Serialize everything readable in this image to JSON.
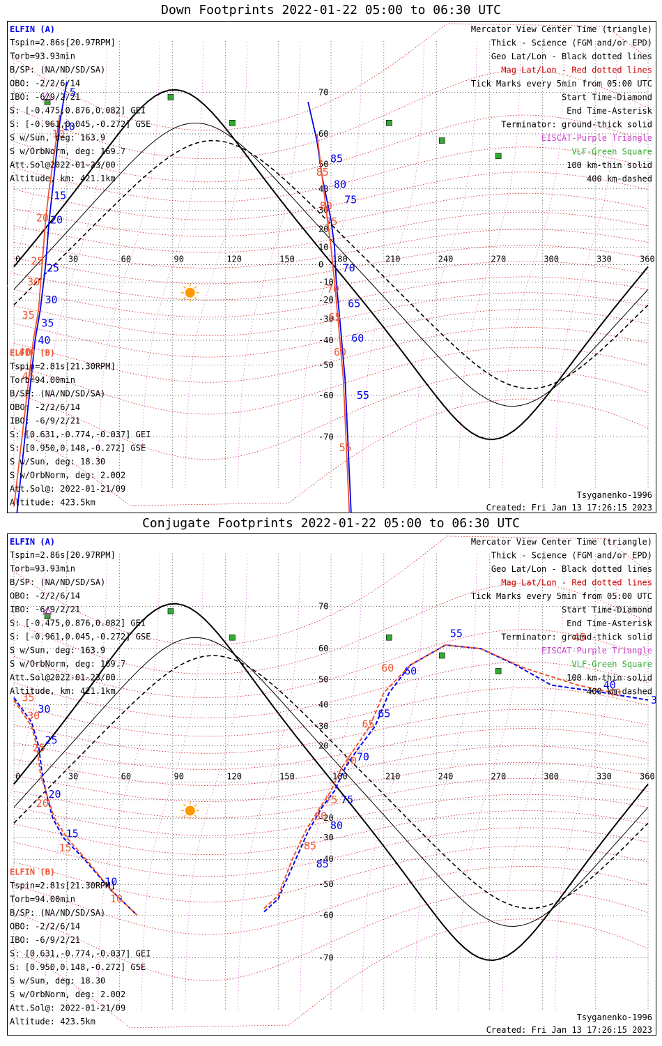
{
  "panels": [
    {
      "title": "Down Footprints 2022-01-22 05:00 to 06:30 UTC",
      "left_info": {
        "craft_a_label": "ELFIN (A)",
        "lines_a": [
          "Tspin=2.86s[20.97RPM]",
          "Torb=93.93min",
          "B/SP: (NA/ND/SD/SA)",
          "OBO: -2/2/6/14",
          "IBO: -6/9/2/21",
          "S: [-0.475,0.876,0.082] GEI",
          "S: [-0.961,0.045,-0.272] GSE",
          "S w/Sun, deg: 163.9",
          "S w/OrbNorm, deg: 169.7",
          "Att.Sol@2022-01-23/00",
          "Altitude, km: 421.1km"
        ],
        "craft_b_label": "ELFIN (B)",
        "lines_b": [
          "Tspin=2.81s[21.30RPM]",
          "Torb=94.00min",
          "B/SP: (NA/ND/SD/SA)",
          "OBO: -2/2/6/14",
          "IBO: -6/9/2/21",
          "S: [0.631,-0.774,-0.037] GEI",
          "S: [0.950,0.148,-0.272] GSE",
          "S w/Sun, deg: 18.30",
          "S w/OrbNorm, deg: 2.002",
          "Att.Sol@: 2022-01-21/09",
          "Altitude: 423.5km"
        ]
      },
      "right_info": {
        "lines": [
          "Mercator View Center Time (triangle)",
          "Thick - Science (FGM and/or EPD)",
          "Geo Lat/Lon - Black dotted lines",
          "Mag Lat/Lon - Red dotted lines",
          "Tick Marks every 5min from 05:00 UTC",
          "Start Time-Diamond",
          "End Time-Asterisk",
          "Terminator: ground-thick solid",
          "EISCAT-Purple Triangle",
          "VLF-Green Square",
          "100 km-thin solid",
          "400 km-dashed"
        ],
        "model": "Tsyganenko-1996",
        "created": "Created: Fri Jan 13 17:26:15 2023"
      },
      "chart_data": {
        "type": "map",
        "projection": "Mercator",
        "x_ticks": [
          0,
          30,
          60,
          90,
          120,
          150,
          180,
          210,
          240,
          270,
          300,
          330,
          360
        ],
        "y_ticks": [
          70,
          60,
          50,
          40,
          30,
          20,
          10,
          0,
          -10,
          -20,
          -30,
          -40,
          -50,
          -60,
          -70
        ],
        "y_tick_labels": [
          "70",
          "60",
          "50",
          "40",
          "30",
          "20",
          "10",
          "0",
          "-10",
          "-20",
          "-30",
          "-40",
          "-50",
          "-60",
          "-70"
        ],
        "colors": {
          "elfin_a": "#0000ee",
          "elfin_b": "#ee5533",
          "geo_grid": "#000000",
          "mag_grid": "#cc0000",
          "eiscat": "#cc44cc",
          "vlf": "#33aa33",
          "sun": "#ff9900"
        },
        "series": [
          {
            "name": "ELFIN (A)",
            "points": [
              [
                0,
                -83
              ],
              [
                12,
                -40
              ],
              [
                15,
                -25
              ],
              [
                18,
                0
              ],
              [
                20,
                25
              ],
              [
                22,
                40
              ],
              [
                26,
                63
              ],
              [
                30,
                72
              ]
            ],
            "ticks": [
              [
                12,
                -40,
                "40"
              ],
              [
                14,
                -32,
                "35"
              ],
              [
                16,
                -20,
                "30"
              ],
              [
                17,
                -2,
                "25"
              ],
              [
                19,
                25,
                "20"
              ],
              [
                21,
                37,
                "15"
              ],
              [
                26,
                62,
                "10"
              ],
              [
                30,
                70,
                "5"
              ]
            ]
          },
          {
            "name": "ELFIN (B)",
            "points": [
              [
                0,
                -80
              ],
              [
                11,
                -40
              ],
              [
                14,
                -25
              ],
              [
                16,
                0
              ],
              [
                18,
                25
              ],
              [
                20,
                40
              ],
              [
                26,
                65
              ]
            ],
            "ticks": [
              [
                3,
                -54,
                "45"
              ],
              [
                1,
                -45,
                "40"
              ],
              [
                3,
                -28,
                "35"
              ],
              [
                6,
                -10,
                "30"
              ],
              [
                8,
                2,
                "25"
              ],
              [
                11,
                26,
                "20"
              ],
              [
                20,
                60,
                "10"
              ]
            ]
          },
          {
            "name": "ELFIN (A) north",
            "points": [
              [
                167,
                68
              ],
              [
                172,
                58
              ],
              [
                175,
                45
              ],
              [
                180,
                25
              ],
              [
                182,
                10
              ],
              [
                183,
                -10
              ],
              [
                185,
                -30
              ],
              [
                188,
                -55
              ],
              [
                193,
                -85
              ]
            ],
            "ticks": [
              [
                178,
                52,
                "85"
              ],
              [
                180,
                42,
                "80"
              ],
              [
                186,
                35,
                "75"
              ],
              [
                185,
                -2,
                "70"
              ],
              [
                188,
                -22,
                "65"
              ],
              [
                190,
                -39,
                "60"
              ],
              [
                193,
                -60,
                "55"
              ]
            ]
          },
          {
            "name": "ELFIN (B) north",
            "points": [
              [
                172,
                60
              ],
              [
                175,
                45
              ],
              [
                178,
                25
              ],
              [
                180,
                10
              ],
              [
                182,
                -10
              ],
              [
                184,
                -30
              ],
              [
                187,
                -55
              ],
              [
                192,
                -85
              ]
            ],
            "ticks": [
              [
                170,
                47,
                "85"
              ],
              [
                172,
                32,
                "80"
              ],
              [
                175,
                24,
                "75"
              ],
              [
                176,
                -14,
                "70"
              ],
              [
                177,
                -29,
                "65"
              ],
              [
                180,
                -45,
                "60"
              ],
              [
                183,
                -72,
                "55"
              ]
            ]
          }
        ],
        "eiscat_site": {
          "lon": 19,
          "lat": 69
        },
        "vlf_sites": [
          [
            19,
            68
          ],
          [
            89,
            69
          ],
          [
            124,
            63
          ],
          [
            213,
            63
          ],
          [
            243,
            58
          ],
          [
            275,
            53
          ]
        ],
        "sun": {
          "lon": 100,
          "lat": -16
        }
      }
    },
    {
      "title": "Conjugate Footprints 2022-01-22 05:00 to 06:30 UTC",
      "left_info": {
        "craft_a_label": "ELFIN (A)",
        "lines_a": [
          "Tspin=2.86s[20.97RPM]",
          "Torb=93.93min",
          "B/SP: (NA/ND/SD/SA)",
          "OBO: -2/2/6/14",
          "IBO: -6/9/2/21",
          "S: [-0.475,0.876,0.082] GEI",
          "S: [-0.961,0.045,-0.272] GSE",
          "S w/Sun, deg: 163.9",
          "S w/OrbNorm, deg: 169.7",
          "Att.Sol@2022-01-23/00",
          "Altitude, km: 421.1km"
        ],
        "craft_b_label": "ELFIN (B)",
        "lines_b": [
          "Tspin=2.81s[21.30RPM]",
          "Torb=94.00min",
          "B/SP: (NA/ND/SD/SA)",
          "OBO: -2/2/6/14",
          "IBO: -6/9/2/21",
          "S: [0.631,-0.774,-0.037] GEI",
          "S: [0.950,0.148,-0.272] GSE",
          "S w/Sun, deg: 18.30",
          "S w/OrbNorm, deg: 2.002",
          "Att.Sol@: 2022-01-21/09",
          "Altitude: 423.5km"
        ]
      },
      "right_info": {
        "lines": [
          "Mercator View Center Time (triangle)",
          "Thick - Science (FGM and/or EPD)",
          "Geo Lat/Lon - Black dotted lines",
          "Mag Lat/Lon - Red dotted lines",
          "Tick Marks every 5min from 05:00 UTC",
          "Start Time-Diamond",
          "End Time-Asterisk",
          "Terminator: ground-thick solid",
          "EISCAT-Purple Triangle",
          "VLF-Green Square",
          "100 km-thin solid",
          "400 km-dashed"
        ],
        "model": "Tsyganenko-1996",
        "created": "Created: Fri Jan 13 17:26:15 2023"
      },
      "chart_data": {
        "type": "map",
        "projection": "Mercator",
        "x_ticks": [
          0,
          30,
          60,
          90,
          120,
          150,
          180,
          210,
          240,
          270,
          300,
          330,
          360
        ],
        "y_ticks": [
          70,
          60,
          50,
          40,
          30,
          20,
          10,
          0,
          -10,
          -20,
          -30,
          -40,
          -50,
          -60,
          -70
        ],
        "y_tick_labels": [
          "70",
          "60",
          "50",
          "40",
          "30",
          "20",
          "",
          "",
          "",
          "-20",
          "-30",
          "-40",
          "-50",
          "-60",
          "-70"
        ],
        "colors": {
          "elfin_a": "#0000ee",
          "elfin_b": "#ee5533",
          "geo_grid": "#000000",
          "mag_grid": "#cc0000",
          "eiscat": "#cc44cc",
          "vlf": "#33aa33",
          "sun": "#ff9900"
        },
        "series": [
          {
            "name": "ELFIN (A) west",
            "dashed": true,
            "points": [
              [
                0,
                43
              ],
              [
                10,
                32
              ],
              [
                14,
                20
              ],
              [
                16,
                5
              ],
              [
                18,
                -5
              ],
              [
                22,
                -20
              ],
              [
                28,
                -30
              ],
              [
                40,
                -40
              ],
              [
                55,
                -52
              ],
              [
                70,
                -60
              ]
            ],
            "ticks": [
              [
                12,
                38,
                "30"
              ],
              [
                16,
                23,
                "25"
              ],
              [
                18,
                -7,
                "20"
              ],
              [
                28,
                -28,
                "15"
              ],
              [
                50,
                -49,
                "10"
              ]
            ]
          },
          {
            "name": "ELFIN (B) west",
            "dashed": true,
            "points": [
              [
                0,
                42
              ],
              [
                10,
                30
              ],
              [
                13,
                20
              ],
              [
                15,
                5
              ],
              [
                18,
                -5
              ],
              [
                23,
                -20
              ],
              [
                30,
                -30
              ],
              [
                42,
                -41
              ],
              [
                55,
                -52
              ],
              [
                70,
                -60
              ]
            ],
            "ticks": [
              [
                3,
                43,
                "35"
              ],
              [
                6,
                35,
                "30"
              ],
              [
                9,
                19,
                "25"
              ],
              [
                11,
                -12,
                "20"
              ],
              [
                24,
                -35,
                "15"
              ],
              [
                53,
                -55,
                "10"
              ]
            ]
          },
          {
            "name": "ELFIN (A) east",
            "dashed": true,
            "points": [
              [
                142,
                -59
              ],
              [
                150,
                -55
              ],
              [
                160,
                -40
              ],
              [
                167,
                -27
              ],
              [
                175,
                -14
              ],
              [
                182,
                -5
              ],
              [
                188,
                8
              ],
              [
                195,
                18
              ],
              [
                205,
                30
              ],
              [
                213,
                45
              ],
              [
                225,
                55
              ],
              [
                245,
                61
              ],
              [
                265,
                60
              ],
              [
                285,
                55
              ],
              [
                305,
                48
              ],
              [
                335,
                45
              ],
              [
                360,
                42
              ]
            ],
            "ticks": [
              [
                170,
                -42,
                "85"
              ],
              [
                178,
                -24,
                "80"
              ],
              [
                184,
                -10,
                "75"
              ],
              [
                193,
                14,
                "70"
              ],
              [
                205,
                36,
                "65"
              ],
              [
                220,
                53,
                "60"
              ],
              [
                246,
                64,
                "55"
              ],
              [
                333,
                48,
                "40"
              ],
              [
                360,
                42,
                "35"
              ]
            ]
          },
          {
            "name": "ELFIN (B) east",
            "dashed": true,
            "points": [
              [
                142,
                -58
              ],
              [
                150,
                -54
              ],
              [
                158,
                -40
              ],
              [
                166,
                -26
              ],
              [
                174,
                -14
              ],
              [
                180,
                -5
              ],
              [
                186,
                8
              ],
              [
                193,
                18
              ],
              [
                202,
                30
              ],
              [
                210,
                45
              ],
              [
                225,
                55
              ],
              [
                245,
                61
              ],
              [
                265,
                60
              ],
              [
                290,
                54
              ],
              [
                320,
                48
              ],
              [
                340,
                45
              ]
            ],
            "ticks": [
              [
                163,
                -34,
                "85"
              ],
              [
                169,
                -19,
                "80"
              ],
              [
                175,
                -10,
                "75"
              ],
              [
                186,
                12,
                "70"
              ],
              [
                196,
                31,
                "65"
              ],
              [
                207,
                54,
                "60"
              ],
              [
                316,
                63,
                "45"
              ],
              [
                336,
                45,
                "40"
              ]
            ]
          }
        ],
        "eiscat_site": {
          "lon": 19,
          "lat": 69
        },
        "vlf_sites": [
          [
            19,
            68
          ],
          [
            89,
            69
          ],
          [
            124,
            63
          ],
          [
            213,
            63
          ],
          [
            243,
            58
          ],
          [
            275,
            53
          ]
        ],
        "sun": {
          "lon": 100,
          "lat": -16
        }
      }
    }
  ]
}
